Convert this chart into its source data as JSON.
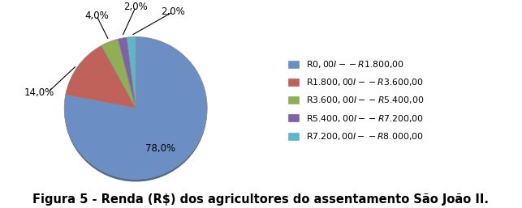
{
  "slices": [
    78.0,
    14.0,
    4.0,
    2.0,
    2.0
  ],
  "pct_labels": [
    "78,0%",
    "14,0%",
    "4,0%",
    "2,0%",
    "2,0%"
  ],
  "colors": [
    "#6B8EC4",
    "#C0625A",
    "#8FAF52",
    "#8060A8",
    "#5BB8C8"
  ],
  "colors_dark": [
    "#4A6A9A",
    "#8B3A34",
    "#607A30",
    "#503080",
    "#308898"
  ],
  "legend_labels": [
    "R$ 0,00 I-- R$1.800,00",
    "R$1.800,00 I-- R$3.600,00",
    "R$3.600,00 I-- R$5.400,00",
    "R$5.400,00 I--R$7.200,00",
    "R$7.200,00 I--R$8.000,00"
  ],
  "title": "Figura 5 - Renda (R$) dos agricultores do assentamento São João II.",
  "title_fontsize": 10.5,
  "startangle": 90,
  "depth": 0.07
}
